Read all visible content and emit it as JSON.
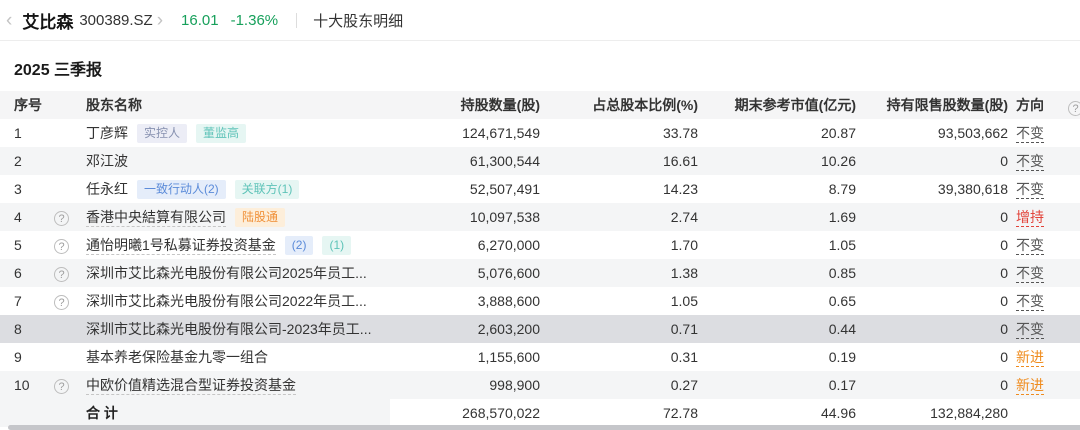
{
  "topbar": {
    "back_icon": "‹",
    "stock_name": "艾比森",
    "stock_code": "300389.SZ",
    "forward_icon": "›",
    "price": "16.01",
    "change_pct": "-1.36%",
    "page_title": "十大股东明细"
  },
  "report_period": "2025 三季报",
  "icons": {
    "help": "?"
  },
  "colors": {
    "price_green": "#17a05b",
    "dir_unchanged": "#555555",
    "dir_increase": "#e2433a",
    "dir_new": "#ef8c1f"
  },
  "table": {
    "headers": {
      "seq": "序号",
      "name": "股东名称",
      "shares": "持股数量(股)",
      "pct": "占总股本比例(%)",
      "market_value": "期末参考市值(亿元)",
      "restricted": "持有限售股数量(股)",
      "direction": "方向"
    },
    "rows": [
      {
        "seq": "1",
        "help": false,
        "name": "丁彦辉",
        "name_underline": false,
        "tags": [
          {
            "label": "实控人",
            "style": "purple"
          },
          {
            "label": "董监高",
            "style": "teal"
          }
        ],
        "shares": "124,671,549",
        "pct": "33.78",
        "market_value": "20.87",
        "restricted": "93,503,662",
        "direction": "不变",
        "direction_style": "unchanged",
        "selected": false
      },
      {
        "seq": "2",
        "help": false,
        "name": "邓江波",
        "name_underline": false,
        "tags": [],
        "shares": "61,300,544",
        "pct": "16.61",
        "market_value": "10.26",
        "restricted": "0",
        "direction": "不变",
        "direction_style": "unchanged",
        "selected": false
      },
      {
        "seq": "3",
        "help": false,
        "name": "任永红",
        "name_underline": false,
        "tags": [
          {
            "label": "一致行动人(2)",
            "style": "blue"
          },
          {
            "label": "关联方(1)",
            "style": "teal"
          }
        ],
        "shares": "52,507,491",
        "pct": "14.23",
        "market_value": "8.79",
        "restricted": "39,380,618",
        "direction": "不变",
        "direction_style": "unchanged",
        "selected": false
      },
      {
        "seq": "4",
        "help": true,
        "name": "香港中央結算有限公司",
        "name_underline": true,
        "tags": [
          {
            "label": "陆股通",
            "style": "orange"
          }
        ],
        "shares": "10,097,538",
        "pct": "2.74",
        "market_value": "1.69",
        "restricted": "0",
        "direction": "增持",
        "direction_style": "increase",
        "selected": false
      },
      {
        "seq": "5",
        "help": true,
        "name": "通怡明曦1号私募证券投资基金",
        "name_underline": true,
        "tags": [
          {
            "label": "(2)",
            "style": "blue"
          },
          {
            "label": "(1)",
            "style": "teal"
          }
        ],
        "shares": "6,270,000",
        "pct": "1.70",
        "market_value": "1.05",
        "restricted": "0",
        "direction": "不变",
        "direction_style": "unchanged",
        "selected": false
      },
      {
        "seq": "6",
        "help": true,
        "name": "深圳市艾比森光电股份有限公司2025年员工...",
        "name_underline": false,
        "tags": [],
        "shares": "5,076,600",
        "pct": "1.38",
        "market_value": "0.85",
        "restricted": "0",
        "direction": "不变",
        "direction_style": "unchanged",
        "selected": false
      },
      {
        "seq": "7",
        "help": true,
        "name": "深圳市艾比森光电股份有限公司2022年员工...",
        "name_underline": false,
        "tags": [],
        "shares": "3,888,600",
        "pct": "1.05",
        "market_value": "0.65",
        "restricted": "0",
        "direction": "不变",
        "direction_style": "unchanged",
        "selected": false
      },
      {
        "seq": "8",
        "help": false,
        "name": "深圳市艾比森光电股份有限公司-2023年员工...",
        "name_underline": false,
        "tags": [],
        "shares": "2,603,200",
        "pct": "0.71",
        "market_value": "0.44",
        "restricted": "0",
        "direction": "不变",
        "direction_style": "unchanged",
        "selected": true
      },
      {
        "seq": "9",
        "help": false,
        "name": "基本养老保险基金九零一组合",
        "name_underline": false,
        "tags": [],
        "shares": "1,155,600",
        "pct": "0.31",
        "market_value": "0.19",
        "restricted": "0",
        "direction": "新进",
        "direction_style": "new",
        "selected": false
      },
      {
        "seq": "10",
        "help": true,
        "name": "中欧价值精选混合型证券投资基金",
        "name_underline": true,
        "tags": [],
        "shares": "998,900",
        "pct": "0.27",
        "market_value": "0.17",
        "restricted": "0",
        "direction": "新进",
        "direction_style": "new",
        "selected": false
      }
    ],
    "total": {
      "label": "合 计",
      "shares": "268,570,022",
      "pct": "72.78",
      "market_value": "44.96",
      "restricted": "132,884,280"
    }
  }
}
